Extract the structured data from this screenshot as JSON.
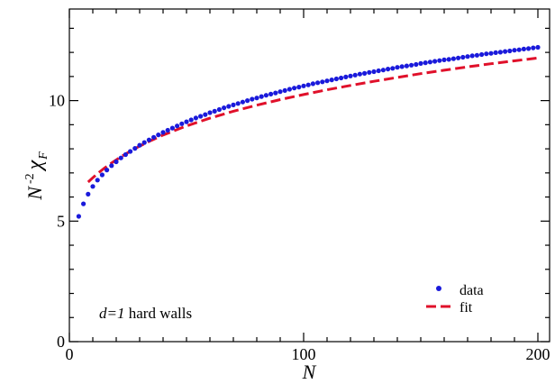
{
  "chart_data": {
    "type": "scatter",
    "xlabel": "N",
    "ylabel": {
      "base": "N",
      "exp": "-2",
      "chi": "χ",
      "sub": "F"
    },
    "xlim": [
      0,
      205
    ],
    "ylim": [
      0,
      13.8
    ],
    "x_ticks": [
      0,
      100,
      200
    ],
    "y_ticks": [
      0,
      5,
      10
    ],
    "x_tick_labels": [
      "0",
      "100",
      "200"
    ],
    "y_tick_labels": [
      "0",
      "5",
      "10"
    ],
    "annotation": {
      "math": "d=1",
      "text": " hard walls"
    },
    "legend": {
      "position": "bottom-right",
      "entries": [
        "data",
        "fit"
      ]
    },
    "colors": {
      "data": "#1a1adb",
      "fit": "#e0102a"
    },
    "series": [
      {
        "name": "data",
        "style": "dots",
        "x": [
          4,
          6,
          8,
          10,
          12,
          14,
          16,
          18,
          20,
          22,
          24,
          26,
          28,
          30,
          32,
          34,
          36,
          38,
          40,
          42,
          44,
          46,
          48,
          50,
          52,
          54,
          56,
          58,
          60,
          62,
          64,
          66,
          68,
          70,
          72,
          74,
          76,
          78,
          80,
          82,
          84,
          86,
          88,
          90,
          92,
          94,
          96,
          98,
          100,
          102,
          104,
          106,
          108,
          110,
          112,
          114,
          116,
          118,
          120,
          122,
          124,
          126,
          128,
          130,
          132,
          134,
          136,
          138,
          140,
          142,
          144,
          146,
          148,
          150,
          152,
          154,
          156,
          158,
          160,
          162,
          164,
          166,
          168,
          170,
          172,
          174,
          176,
          178,
          180,
          182,
          184,
          186,
          188,
          190,
          192,
          194,
          196,
          198,
          200
        ],
        "y": [
          5.2,
          5.72,
          6.12,
          6.44,
          6.7,
          6.92,
          7.12,
          7.3,
          7.46,
          7.62,
          7.76,
          7.89,
          8.02,
          8.15,
          8.26,
          8.37,
          8.48,
          8.58,
          8.68,
          8.77,
          8.86,
          8.95,
          9.04,
          9.12,
          9.2,
          9.28,
          9.35,
          9.42,
          9.5,
          9.56,
          9.63,
          9.7,
          9.76,
          9.82,
          9.88,
          9.94,
          10.0,
          10.06,
          10.11,
          10.17,
          10.22,
          10.27,
          10.32,
          10.37,
          10.42,
          10.47,
          10.52,
          10.56,
          10.61,
          10.65,
          10.7,
          10.74,
          10.78,
          10.82,
          10.86,
          10.9,
          10.94,
          10.98,
          11.02,
          11.06,
          11.1,
          11.13,
          11.17,
          11.2,
          11.24,
          11.27,
          11.31,
          11.34,
          11.38,
          11.41,
          11.44,
          11.47,
          11.5,
          11.54,
          11.57,
          11.6,
          11.63,
          11.66,
          11.69,
          11.71,
          11.74,
          11.77,
          11.8,
          11.83,
          11.86,
          11.88,
          11.91,
          11.94,
          11.96,
          11.99,
          12.01,
          12.04,
          12.06,
          12.09,
          12.11,
          12.14,
          12.16,
          12.19,
          12.21
        ]
      },
      {
        "name": "fit",
        "style": "dashed",
        "x": [
          8,
          10,
          12,
          15,
          18,
          22,
          26,
          30,
          35,
          40,
          50,
          60,
          70,
          80,
          90,
          100,
          110,
          120,
          130,
          140,
          150,
          160,
          170,
          180,
          190,
          200
        ],
        "y": [
          6.62,
          6.8,
          6.97,
          7.2,
          7.41,
          7.67,
          7.9,
          8.11,
          8.35,
          8.57,
          8.95,
          9.27,
          9.56,
          9.81,
          10.04,
          10.25,
          10.45,
          10.63,
          10.8,
          10.96,
          11.12,
          11.26,
          11.4,
          11.53,
          11.65,
          11.77
        ]
      }
    ]
  }
}
